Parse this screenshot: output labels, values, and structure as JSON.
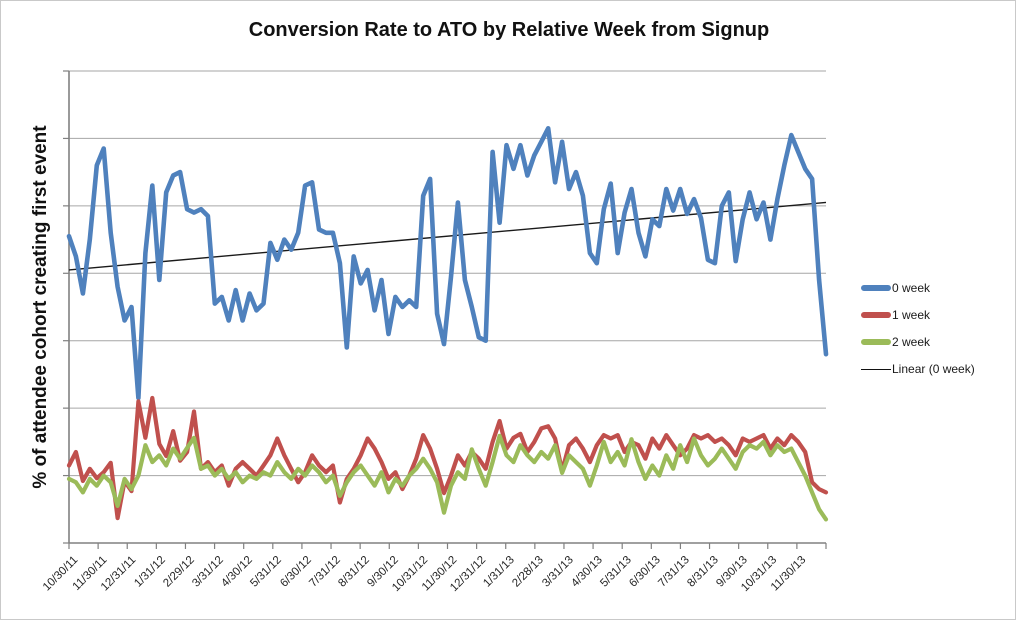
{
  "figure": {
    "title": "Conversion Rate to ATO by Relative Week from Signup",
    "y_axis_label": "% of attendee cohort creating first event"
  },
  "legend": {
    "position": "right",
    "items": [
      {
        "label": "0 week",
        "color": "#4F81BD",
        "style": "thick"
      },
      {
        "label": "1 week",
        "color": "#C0504D",
        "style": "thick"
      },
      {
        "label": "2 week",
        "color": "#9BBB59",
        "style": "thick"
      },
      {
        "label": "Linear  (0 week)",
        "color": "#111111",
        "style": "thin"
      }
    ]
  },
  "colors": {
    "series_blue": "#4F81BD",
    "series_red": "#C0504D",
    "series_green": "#9BBB59",
    "trendline": "#1a1a1a",
    "gridline": "#a6a6a6",
    "axis": "#808080"
  },
  "chart_data": {
    "type": "line",
    "title": "Conversion Rate to ATO by Relative Week from Signup",
    "xlabel": "",
    "ylabel": "% of attendee cohort creating first event",
    "x_unit": "weekly cohort points (one per week starting 10/30/11)",
    "y_unit": "gridline units; y axis has tick marks but no numeric labels visible",
    "ylim": [
      0,
      7
    ],
    "grid": true,
    "legend_position": "right",
    "x_tick_labels": [
      "10/30/11",
      "11/30/11",
      "12/31/11",
      "1/31/12",
      "2/29/12",
      "3/31/12",
      "4/30/12",
      "5/31/12",
      "6/30/12",
      "7/31/12",
      "8/31/12",
      "9/30/12",
      "10/31/12",
      "11/30/12",
      "12/31/12",
      "1/31/13",
      "2/28/13",
      "3/31/13",
      "4/30/13",
      "5/31/13",
      "6/30/13",
      "7/31/13",
      "8/31/13",
      "9/30/13",
      "10/31/13",
      "11/30/13"
    ],
    "series": [
      {
        "name": "0 week",
        "color": "#4F81BD",
        "values": [
          4.55,
          4.25,
          3.7,
          4.5,
          5.6,
          5.85,
          4.6,
          3.8,
          3.3,
          3.5,
          2.15,
          4.3,
          5.3,
          3.9,
          5.2,
          5.45,
          5.5,
          4.95,
          4.9,
          4.95,
          4.85,
          3.55,
          3.65,
          3.3,
          3.75,
          3.3,
          3.7,
          3.45,
          3.55,
          4.45,
          4.2,
          4.5,
          4.35,
          4.6,
          5.3,
          5.35,
          4.65,
          4.6,
          4.6,
          4.15,
          2.9,
          4.25,
          3.85,
          4.05,
          3.45,
          3.9,
          3.1,
          3.65,
          3.5,
          3.6,
          3.5,
          5.15,
          5.4,
          3.4,
          2.95,
          3.95,
          5.05,
          3.9,
          3.5,
          3.05,
          3.0,
          5.8,
          4.75,
          5.9,
          5.55,
          5.9,
          5.45,
          5.75,
          5.95,
          6.15,
          5.35,
          5.95,
          5.25,
          5.5,
          5.15,
          4.3,
          4.15,
          4.95,
          5.33,
          4.3,
          4.9,
          5.25,
          4.6,
          4.25,
          4.8,
          4.7,
          5.25,
          4.93,
          5.25,
          4.88,
          5.1,
          4.82,
          4.2,
          4.15,
          5.0,
          5.2,
          4.18,
          4.8,
          5.2,
          4.8,
          5.05,
          4.5,
          5.1,
          5.6,
          6.05,
          5.8,
          5.55,
          5.4,
          3.9,
          2.8
        ]
      },
      {
        "name": "1 week",
        "color": "#C0504D",
        "values": [
          1.15,
          1.35,
          0.92,
          1.1,
          0.96,
          1.05,
          1.19,
          0.37,
          0.92,
          0.77,
          2.1,
          1.56,
          2.15,
          1.47,
          1.29,
          1.66,
          1.22,
          1.35,
          1.95,
          1.1,
          1.2,
          1.05,
          1.15,
          0.85,
          1.1,
          1.2,
          1.1,
          1.0,
          1.15,
          1.3,
          1.55,
          1.3,
          1.1,
          0.9,
          1.05,
          1.3,
          1.15,
          1.05,
          1.15,
          0.6,
          0.95,
          1.1,
          1.3,
          1.55,
          1.4,
          1.2,
          0.95,
          1.05,
          0.8,
          1.0,
          1.25,
          1.6,
          1.4,
          1.1,
          0.74,
          1.0,
          1.3,
          1.15,
          1.35,
          1.25,
          1.1,
          1.5,
          1.81,
          1.4,
          1.56,
          1.62,
          1.35,
          1.5,
          1.7,
          1.73,
          1.55,
          1.07,
          1.45,
          1.55,
          1.4,
          1.2,
          1.45,
          1.6,
          1.55,
          1.6,
          1.35,
          1.5,
          1.45,
          1.25,
          1.55,
          1.4,
          1.6,
          1.45,
          1.3,
          1.4,
          1.6,
          1.55,
          1.6,
          1.5,
          1.55,
          1.45,
          1.3,
          1.55,
          1.5,
          1.55,
          1.6,
          1.4,
          1.55,
          1.45,
          1.6,
          1.5,
          1.35,
          0.9,
          0.8,
          0.75
        ]
      },
      {
        "name": "2 week",
        "color": "#9BBB59",
        "values": [
          0.95,
          0.9,
          0.75,
          0.95,
          0.85,
          1.0,
          0.9,
          0.55,
          0.95,
          0.8,
          1.0,
          1.45,
          1.2,
          1.3,
          1.15,
          1.4,
          1.25,
          1.41,
          1.56,
          1.1,
          1.15,
          1.0,
          1.1,
          0.95,
          1.05,
          0.9,
          1.0,
          0.95,
          1.05,
          1.0,
          1.2,
          1.05,
          0.95,
          1.1,
          1.0,
          1.15,
          1.05,
          0.9,
          1.0,
          0.7,
          0.9,
          1.05,
          1.15,
          1.0,
          0.85,
          1.05,
          0.75,
          0.95,
          0.85,
          1.0,
          1.1,
          1.25,
          1.1,
          0.9,
          0.45,
          0.85,
          1.05,
          0.95,
          1.39,
          1.1,
          0.85,
          1.2,
          1.59,
          1.3,
          1.2,
          1.45,
          1.3,
          1.2,
          1.35,
          1.25,
          1.45,
          1.04,
          1.3,
          1.2,
          1.1,
          0.85,
          1.15,
          1.5,
          1.2,
          1.35,
          1.15,
          1.54,
          1.2,
          0.95,
          1.15,
          1.0,
          1.3,
          1.1,
          1.45,
          1.2,
          1.55,
          1.3,
          1.15,
          1.25,
          1.4,
          1.25,
          1.1,
          1.35,
          1.45,
          1.4,
          1.5,
          1.3,
          1.45,
          1.35,
          1.4,
          1.2,
          1.0,
          0.75,
          0.5,
          0.35
        ]
      }
    ],
    "trendline": {
      "name": "Linear  (0 week)",
      "applies_to": "0 week",
      "color": "#1a1a1a",
      "start_value": 4.05,
      "end_value": 5.05
    }
  }
}
